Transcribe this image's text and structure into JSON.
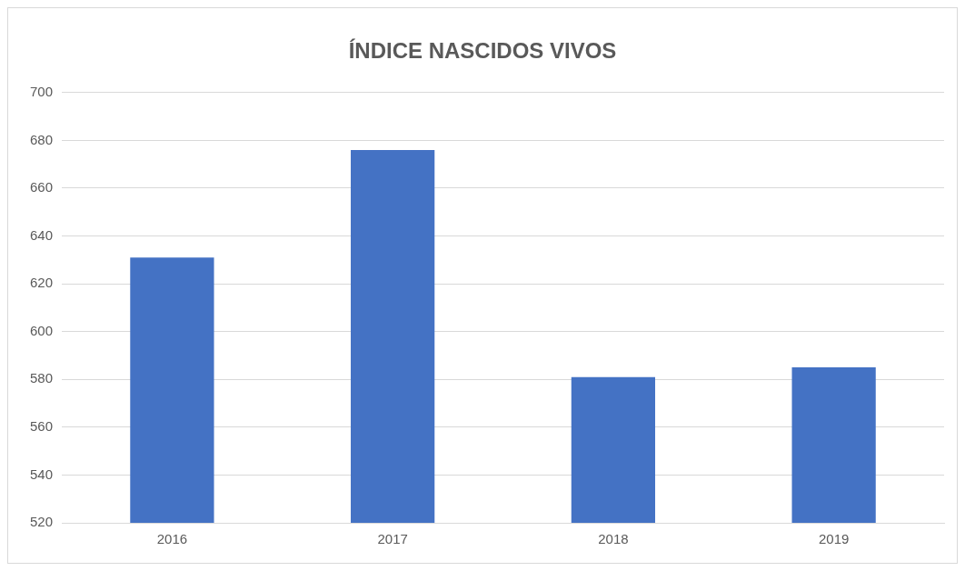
{
  "chart_data": {
    "type": "bar",
    "title": "ÍNDICE NASCIDOS VIVOS",
    "categories": [
      "2016",
      "2017",
      "2018",
      "2019"
    ],
    "values": [
      631,
      676,
      581,
      585
    ],
    "color": "#4472c4",
    "ylim": [
      520,
      700
    ],
    "yticks": [
      520,
      540,
      560,
      580,
      600,
      620,
      640,
      660,
      680,
      700
    ],
    "grid": "y",
    "legend": false
  }
}
